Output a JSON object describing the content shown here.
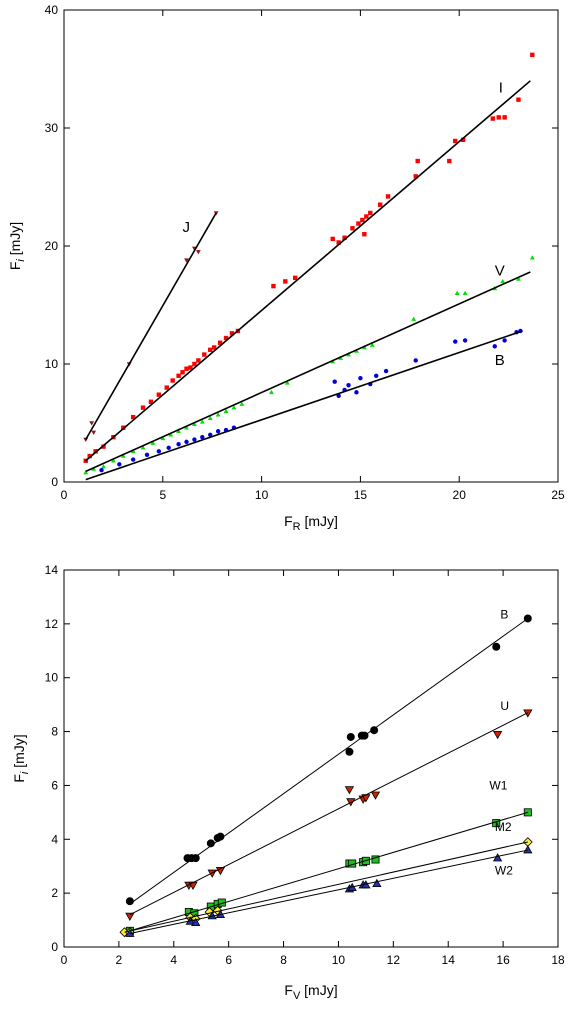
{
  "chart_data": [
    {
      "type": "scatter",
      "xlabel_main": "F",
      "xlabel_sub": "R",
      "xlabel_unit": " [mJy]",
      "ylabel_main": "F",
      "ylabel_sub": "i",
      "ylabel_unit": " [mJy]",
      "xlim": [
        0,
        25
      ],
      "ylim": [
        0,
        40
      ],
      "xticks": [
        0,
        5,
        10,
        15,
        20,
        25
      ],
      "yticks": [
        0,
        10,
        20,
        30,
        40
      ],
      "series": [
        {
          "name": "J",
          "color": "#8b1a1a",
          "marker": "triangle-down",
          "fit": [
            [
              1.1,
              3.6
            ],
            [
              7.7,
              22.8
            ]
          ],
          "points": [
            [
              1.1,
              3.6
            ],
            [
              1.4,
              5.0
            ],
            [
              1.5,
              4.2
            ],
            [
              3.3,
              10.0
            ],
            [
              6.2,
              18.8
            ],
            [
              6.6,
              19.8
            ],
            [
              6.8,
              19.5
            ],
            [
              7.7,
              22.8
            ]
          ]
        },
        {
          "name": "I",
          "color": "#ff0000",
          "marker": "square",
          "fit": [
            [
              1.1,
              1.8
            ],
            [
              23.6,
              34.0
            ]
          ],
          "points": [
            [
              1.1,
              1.8
            ],
            [
              1.3,
              2.2
            ],
            [
              1.6,
              2.6
            ],
            [
              2.0,
              3.0
            ],
            [
              2.5,
              3.8
            ],
            [
              3.0,
              4.6
            ],
            [
              3.5,
              5.5
            ],
            [
              4.0,
              6.3
            ],
            [
              4.4,
              6.8
            ],
            [
              4.8,
              7.4
            ],
            [
              5.2,
              8.0
            ],
            [
              5.5,
              8.6
            ],
            [
              5.8,
              9.0
            ],
            [
              6.0,
              9.3
            ],
            [
              6.2,
              9.6
            ],
            [
              6.4,
              9.7
            ],
            [
              6.6,
              10.0
            ],
            [
              6.8,
              10.3
            ],
            [
              7.1,
              10.8
            ],
            [
              7.4,
              11.2
            ],
            [
              7.6,
              11.4
            ],
            [
              7.9,
              11.8
            ],
            [
              8.2,
              12.2
            ],
            [
              8.5,
              12.6
            ],
            [
              8.8,
              12.8
            ],
            [
              10.6,
              16.6
            ],
            [
              11.2,
              17.0
            ],
            [
              11.7,
              17.3
            ],
            [
              13.6,
              20.6
            ],
            [
              13.9,
              20.3
            ],
            [
              14.2,
              20.7
            ],
            [
              14.6,
              21.5
            ],
            [
              14.9,
              21.9
            ],
            [
              15.1,
              22.2
            ],
            [
              15.3,
              22.5
            ],
            [
              15.5,
              22.8
            ],
            [
              15.2,
              21.0
            ],
            [
              16.0,
              23.5
            ],
            [
              16.4,
              24.2
            ],
            [
              17.8,
              25.9
            ],
            [
              17.9,
              27.2
            ],
            [
              19.5,
              27.2
            ],
            [
              19.8,
              28.9
            ],
            [
              20.2,
              29.0
            ],
            [
              21.7,
              30.8
            ],
            [
              22.0,
              30.9
            ],
            [
              22.3,
              30.9
            ],
            [
              23.0,
              32.4
            ],
            [
              23.7,
              36.2
            ]
          ]
        },
        {
          "name": "V",
          "color": "#00e000",
          "marker": "triangle-up",
          "fit": [
            [
              1.1,
              0.9
            ],
            [
              23.6,
              17.8
            ]
          ],
          "points": [
            [
              1.1,
              0.8
            ],
            [
              1.5,
              1.1
            ],
            [
              2.0,
              1.3
            ],
            [
              2.5,
              1.8
            ],
            [
              3.0,
              2.2
            ],
            [
              3.5,
              2.6
            ],
            [
              4.0,
              2.9
            ],
            [
              4.5,
              3.3
            ],
            [
              5.0,
              3.7
            ],
            [
              5.4,
              4.0
            ],
            [
              5.8,
              4.3
            ],
            [
              6.2,
              4.6
            ],
            [
              6.6,
              4.9
            ],
            [
              7.0,
              5.1
            ],
            [
              7.4,
              5.4
            ],
            [
              7.8,
              5.7
            ],
            [
              8.2,
              6.0
            ],
            [
              8.6,
              6.3
            ],
            [
              9.0,
              6.6
            ],
            [
              10.5,
              7.6
            ],
            [
              11.3,
              8.4
            ],
            [
              13.6,
              10.2
            ],
            [
              14.0,
              10.5
            ],
            [
              14.4,
              10.8
            ],
            [
              14.8,
              11.1
            ],
            [
              15.2,
              11.4
            ],
            [
              15.6,
              11.6
            ],
            [
              17.7,
              13.8
            ],
            [
              19.9,
              16.0
            ],
            [
              20.3,
              16.0
            ],
            [
              21.8,
              16.4
            ],
            [
              22.2,
              17.0
            ],
            [
              23.0,
              17.2
            ],
            [
              23.7,
              19.0
            ]
          ]
        },
        {
          "name": "B",
          "color": "#0000dd",
          "marker": "circle",
          "fit": [
            [
              1.1,
              0.2
            ],
            [
              23.2,
              12.8
            ]
          ],
          "points": [
            [
              1.9,
              1.0
            ],
            [
              2.8,
              1.5
            ],
            [
              3.5,
              1.9
            ],
            [
              4.2,
              2.3
            ],
            [
              4.8,
              2.6
            ],
            [
              5.3,
              2.9
            ],
            [
              5.8,
              3.2
            ],
            [
              6.2,
              3.4
            ],
            [
              6.6,
              3.6
            ],
            [
              7.0,
              3.8
            ],
            [
              7.4,
              4.0
            ],
            [
              7.8,
              4.3
            ],
            [
              8.2,
              4.4
            ],
            [
              8.6,
              4.6
            ],
            [
              13.7,
              8.5
            ],
            [
              13.9,
              7.3
            ],
            [
              14.2,
              7.8
            ],
            [
              14.4,
              8.2
            ],
            [
              14.8,
              7.6
            ],
            [
              15.0,
              8.8
            ],
            [
              15.5,
              8.3
            ],
            [
              15.8,
              9.0
            ],
            [
              16.3,
              9.4
            ],
            [
              17.8,
              10.3
            ],
            [
              19.8,
              11.9
            ],
            [
              20.3,
              12.0
            ],
            [
              21.8,
              11.5
            ],
            [
              22.3,
              12.0
            ],
            [
              22.9,
              12.7
            ],
            [
              23.1,
              12.8
            ]
          ]
        }
      ],
      "labels": [
        {
          "text": "J",
          "x": 6.0,
          "y": 21.2
        },
        {
          "text": "I",
          "x": 22.0,
          "y": 33.0
        },
        {
          "text": "V",
          "x": 21.8,
          "y": 17.5
        },
        {
          "text": "B",
          "x": 21.8,
          "y": 9.9
        }
      ]
    },
    {
      "type": "scatter",
      "xlabel_main": "F",
      "xlabel_sub": "V",
      "xlabel_unit": " [mJy]",
      "ylabel_main": "F",
      "ylabel_sub": "i",
      "ylabel_unit": " [mJy]",
      "xlim": [
        0,
        18
      ],
      "ylim": [
        0,
        14
      ],
      "xticks": [
        0,
        2,
        4,
        6,
        8,
        10,
        12,
        14,
        16,
        18
      ],
      "yticks": [
        0,
        2,
        4,
        6,
        8,
        10,
        12,
        14
      ],
      "series": [
        {
          "name": "B",
          "color": "#000000",
          "marker": "circle",
          "fit": [
            [
              2.4,
              1.6
            ],
            [
              16.9,
              12.2
            ]
          ],
          "points": [
            [
              2.4,
              1.7
            ],
            [
              4.5,
              3.3
            ],
            [
              4.65,
              3.3
            ],
            [
              4.8,
              3.3
            ],
            [
              5.35,
              3.85
            ],
            [
              5.6,
              4.05
            ],
            [
              5.7,
              4.1
            ],
            [
              10.4,
              7.25
            ],
            [
              10.45,
              7.8
            ],
            [
              10.85,
              7.85
            ],
            [
              10.95,
              7.85
            ],
            [
              11.3,
              8.05
            ],
            [
              15.75,
              11.15
            ],
            [
              16.9,
              12.2
            ]
          ]
        },
        {
          "name": "U",
          "color": "#cc2200",
          "marker": "triangle-down",
          "fit": [
            [
              2.4,
              1.2
            ],
            [
              16.9,
              8.7
            ]
          ],
          "points": [
            [
              2.4,
              1.15
            ],
            [
              4.55,
              2.3
            ],
            [
              4.7,
              2.3
            ],
            [
              5.4,
              2.75
            ],
            [
              5.7,
              2.85
            ],
            [
              10.4,
              5.85
            ],
            [
              10.45,
              5.4
            ],
            [
              10.9,
              5.5
            ],
            [
              11.0,
              5.55
            ],
            [
              11.35,
              5.65
            ],
            [
              15.8,
              7.9
            ],
            [
              16.9,
              8.7
            ]
          ]
        },
        {
          "name": "W1",
          "color": "#22bb22",
          "marker": "square",
          "fit": [
            [
              2.4,
              0.6
            ],
            [
              16.9,
              5.0
            ]
          ],
          "points": [
            [
              2.4,
              0.6
            ],
            [
              4.55,
              1.3
            ],
            [
              4.75,
              1.25
            ],
            [
              5.35,
              1.5
            ],
            [
              5.6,
              1.6
            ],
            [
              5.75,
              1.65
            ],
            [
              10.4,
              3.1
            ],
            [
              10.5,
              3.1
            ],
            [
              10.9,
              3.15
            ],
            [
              11.0,
              3.2
            ],
            [
              11.35,
              3.25
            ],
            [
              15.75,
              4.6
            ],
            [
              16.9,
              5.0
            ]
          ]
        },
        {
          "name": "M2",
          "color": "#ffee33",
          "marker": "diamond",
          "fit": [
            [
              2.2,
              0.55
            ],
            [
              16.9,
              3.9
            ]
          ],
          "points": [
            [
              2.2,
              0.55
            ],
            [
              2.4,
              0.55
            ],
            [
              4.6,
              1.1
            ],
            [
              4.8,
              1.05
            ],
            [
              5.3,
              1.3
            ],
            [
              5.6,
              1.35
            ],
            [
              16.9,
              3.9
            ]
          ]
        },
        {
          "name": "W2",
          "color": "#2233aa",
          "marker": "triangle-up",
          "fit": [
            [
              2.4,
              0.5
            ],
            [
              16.9,
              3.6
            ]
          ],
          "points": [
            [
              2.4,
              0.5
            ],
            [
              4.6,
              0.95
            ],
            [
              4.8,
              0.9
            ],
            [
              5.4,
              1.15
            ],
            [
              5.7,
              1.2
            ],
            [
              10.4,
              2.15
            ],
            [
              10.5,
              2.2
            ],
            [
              10.9,
              2.3
            ],
            [
              11.0,
              2.3
            ],
            [
              11.4,
              2.35
            ],
            [
              15.8,
              3.3
            ],
            [
              16.9,
              3.6
            ]
          ]
        }
      ],
      "labels": [
        {
          "text": "B",
          "x": 15.9,
          "y": 12.2
        },
        {
          "text": "U",
          "x": 15.9,
          "y": 8.8
        },
        {
          "text": "W1",
          "x": 15.5,
          "y": 5.85
        },
        {
          "text": "M2",
          "x": 15.7,
          "y": 4.3
        },
        {
          "text": "W2",
          "x": 15.7,
          "y": 2.7
        }
      ]
    }
  ]
}
